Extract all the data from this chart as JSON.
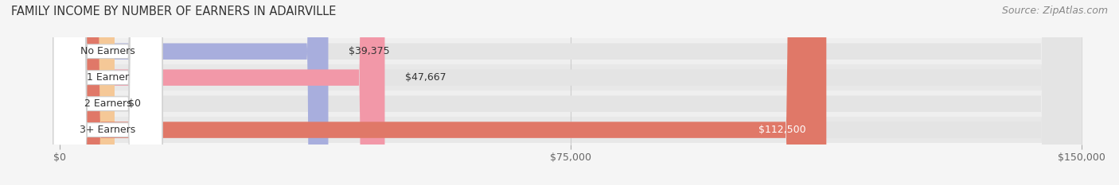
{
  "title": "FAMILY INCOME BY NUMBER OF EARNERS IN ADAIRVILLE",
  "source": "Source: ZipAtlas.com",
  "categories": [
    "No Earners",
    "1 Earner",
    "2 Earners",
    "3+ Earners"
  ],
  "values": [
    39375,
    47667,
    0,
    112500
  ],
  "bar_colors": [
    "#a8aedd",
    "#f298a8",
    "#f5c897",
    "#e07868"
  ],
  "bar_bg_color": "#e4e4e4",
  "xlim_max": 150000,
  "xticks": [
    0,
    75000,
    150000
  ],
  "xtick_labels": [
    "$0",
    "$75,000",
    "$150,000"
  ],
  "title_fontsize": 10.5,
  "source_fontsize": 9,
  "bar_label_fontsize": 9,
  "category_fontsize": 9,
  "tick_fontsize": 9,
  "figure_bg_color": "#f5f5f5",
  "bar_row_bg": "#ebebeb"
}
